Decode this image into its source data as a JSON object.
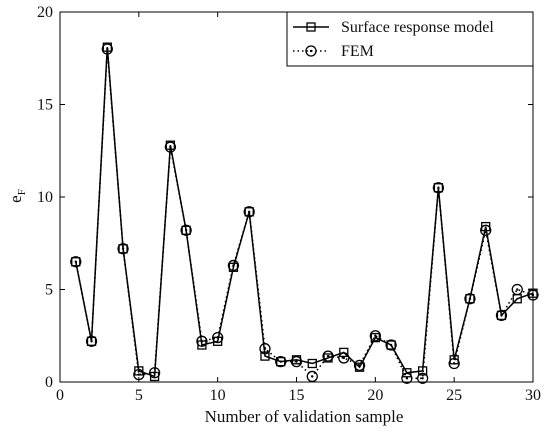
{
  "chart_data": {
    "type": "line",
    "xlabel": "Number of validation sample",
    "ylabel": "e",
    "ylabel_sub": "F",
    "xlim": [
      0,
      30
    ],
    "ylim": [
      0,
      20
    ],
    "xticks": [
      0,
      5,
      10,
      15,
      20,
      25,
      30
    ],
    "yticks": [
      0,
      5,
      10,
      15,
      20
    ],
    "grid": false,
    "legend_position": "top-right",
    "x": [
      1,
      2,
      3,
      4,
      5,
      6,
      7,
      8,
      9,
      10,
      11,
      12,
      13,
      14,
      15,
      16,
      17,
      18,
      19,
      20,
      21,
      22,
      23,
      24,
      25,
      26,
      27,
      28,
      29,
      30
    ],
    "series": [
      {
        "name": "Surface response model",
        "line_style": "solid",
        "marker": "square",
        "color": "#000000",
        "values": [
          6.5,
          2.2,
          18.1,
          7.2,
          0.6,
          0.3,
          12.8,
          8.2,
          2.0,
          2.2,
          6.2,
          9.2,
          1.4,
          1.1,
          1.2,
          1.0,
          1.3,
          1.6,
          0.8,
          2.4,
          2.0,
          0.5,
          0.6,
          10.5,
          1.2,
          4.5,
          8.4,
          3.6,
          4.5,
          4.8
        ]
      },
      {
        "name": "FEM",
        "line_style": "dotted",
        "marker": "circle",
        "color": "#000000",
        "values": [
          6.5,
          2.2,
          18.0,
          7.2,
          0.4,
          0.5,
          12.7,
          8.2,
          2.2,
          2.4,
          6.3,
          9.2,
          1.8,
          1.1,
          1.1,
          0.3,
          1.4,
          1.3,
          0.9,
          2.5,
          2.0,
          0.2,
          0.2,
          10.5,
          1.0,
          4.5,
          8.2,
          3.6,
          5.0,
          4.7
        ]
      }
    ]
  }
}
